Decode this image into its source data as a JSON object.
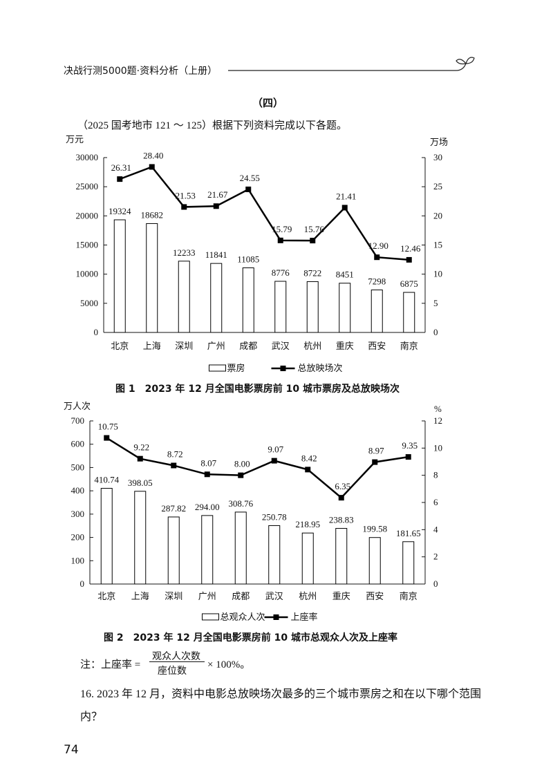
{
  "header": {
    "title": "决战行测5000题·资料分析（上册）"
  },
  "section": "（四）",
  "intro": "（2025 国考地市 121 ～ 125）根据下列资料完成以下各题。",
  "chart_data": [
    {
      "type": "combo",
      "title": "图 1　2023 年 12 月全国电影票房前 10 城市票房及总放映场次",
      "ylabel": "万元",
      "y2label": "万场",
      "categories": [
        "北京",
        "上海",
        "深圳",
        "广州",
        "成都",
        "武汉",
        "杭州",
        "重庆",
        "西安",
        "南京"
      ],
      "ylim": [
        0,
        30000
      ],
      "yticks": [
        0,
        5000,
        10000,
        15000,
        20000,
        25000,
        30000
      ],
      "y2lim": [
        0,
        30
      ],
      "y2ticks": [
        0,
        5,
        10,
        15,
        20,
        25,
        30
      ],
      "series": [
        {
          "name": "票房",
          "kind": "bar",
          "color": "#000000",
          "values": [
            19324,
            18682,
            12233,
            11841,
            11085,
            8776,
            8722,
            8451,
            7298,
            6875
          ]
        },
        {
          "name": "总放映场次",
          "kind": "line",
          "axis": "y2",
          "color": "#000000",
          "values": [
            26.31,
            28.4,
            21.53,
            21.67,
            24.55,
            15.79,
            15.76,
            21.41,
            12.9,
            12.46
          ],
          "value_labels": [
            "26.31",
            "28.40",
            "21.53",
            "21.67",
            "24.55",
            "15.79",
            "15.76",
            "21.41",
            "12.90",
            "12.46"
          ]
        }
      ]
    },
    {
      "type": "combo",
      "title": "图 2　2023 年 12 月全国电影票房前 10 城市总观众人次及上座率",
      "ylabel": "万人次",
      "y2label": "%",
      "categories": [
        "北京",
        "上海",
        "深圳",
        "广州",
        "成都",
        "武汉",
        "杭州",
        "重庆",
        "西安",
        "南京"
      ],
      "ylim": [
        0,
        700
      ],
      "yticks": [
        0,
        100,
        200,
        300,
        400,
        500,
        600,
        700
      ],
      "y2lim": [
        0,
        12
      ],
      "y2ticks": [
        0,
        2,
        4,
        6,
        8,
        10,
        12
      ],
      "series": [
        {
          "name": "总观众人次",
          "kind": "bar",
          "color": "#000000",
          "values": [
            410.74,
            398.05,
            287.82,
            294.0,
            308.76,
            250.78,
            218.95,
            238.83,
            199.58,
            181.65
          ],
          "value_labels": [
            "410.74",
            "398.05",
            "287.82",
            "294.00",
            "308.76",
            "250.78",
            "218.95",
            "238.83",
            "199.58",
            "181.65"
          ]
        },
        {
          "name": "上座率",
          "kind": "line",
          "axis": "y2",
          "color": "#000000",
          "values": [
            10.75,
            9.22,
            8.72,
            8.07,
            8.0,
            9.07,
            8.42,
            6.35,
            8.97,
            9.35
          ],
          "value_labels": [
            "10.75",
            "9.22",
            "8.72",
            "8.07",
            "8.00",
            "9.07",
            "8.42",
            "6.35",
            "8.97",
            "9.35"
          ]
        }
      ]
    }
  ],
  "note": {
    "label": "注：上座率 =",
    "numerator": "观众人次数",
    "denominator": "座位数",
    "suffix": "× 100%。"
  },
  "question": "16. 2023 年 12 月，资料中电影总放映场次最多的三个城市票房之和在以下哪个范围内？",
  "page_number": "74"
}
